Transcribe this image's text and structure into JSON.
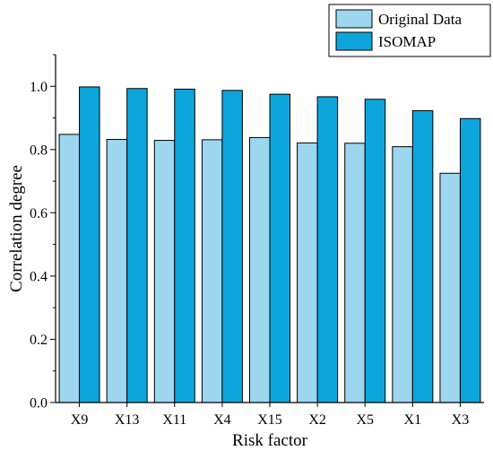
{
  "chart_data": {
    "type": "bar",
    "title": "",
    "xlabel": "Risk factor",
    "ylabel": "Correlation degree",
    "ylim": [
      0,
      1.1
    ],
    "yticks": [
      "0.0",
      "0.2",
      "0.4",
      "0.6",
      "0.8",
      "1.0"
    ],
    "grid": false,
    "legend_position": "top-right",
    "categories": [
      "X9",
      "X13",
      "X11",
      "X4",
      "X15",
      "X2",
      "X5",
      "X1",
      "X3"
    ],
    "series": [
      {
        "name": "Original Data",
        "color": "#9dd6ef",
        "values": [
          0.848,
          0.832,
          0.829,
          0.831,
          0.838,
          0.821,
          0.82,
          0.809,
          0.725
        ]
      },
      {
        "name": "ISOMAP",
        "color": "#0ea5dd",
        "values": [
          0.998,
          0.993,
          0.991,
          0.987,
          0.975,
          0.967,
          0.959,
          0.923,
          0.898
        ]
      }
    ]
  }
}
